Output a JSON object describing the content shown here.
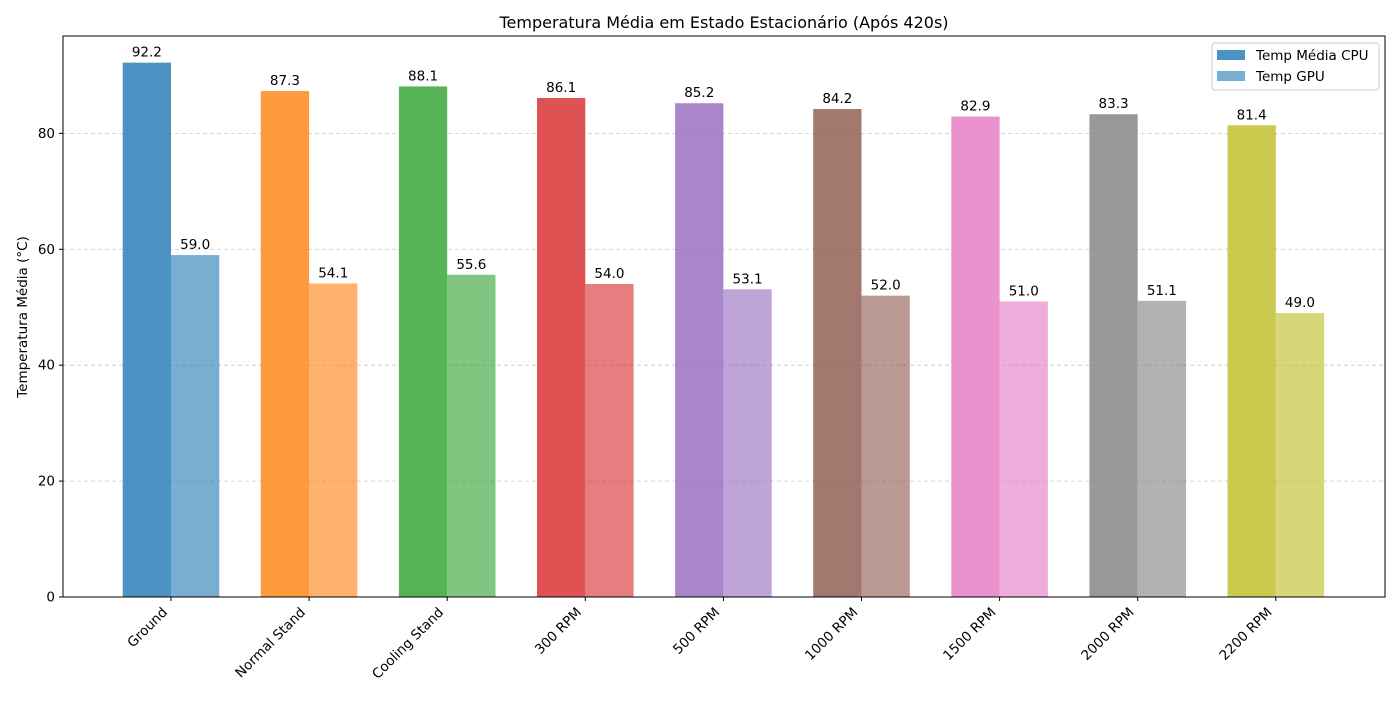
{
  "chart_data": {
    "type": "bar",
    "title": "Temperatura Média em Estado Estacionário (Após 420s)",
    "xlabel": "",
    "ylabel": "Temperatura Média (°C)",
    "ylim": [
      0,
      96.8
    ],
    "yticks": [
      0,
      20,
      40,
      60,
      80
    ],
    "grid": "y-dashed",
    "legend_position": "top-right",
    "categories": [
      "Ground",
      "Normal Stand",
      "Cooling Stand",
      "300 RPM",
      "500 RPM",
      "1000 RPM",
      "1500 RPM",
      "2000 RPM",
      "2200 RPM"
    ],
    "category_colors": [
      "#1f77b4",
      "#ff7f0e",
      "#2ca02c",
      "#d62728",
      "#9467bd",
      "#8c564b",
      "#e377c2",
      "#7f7f7f",
      "#bcbd22"
    ],
    "series": [
      {
        "name": "Temp Média CPU",
        "opacity": 0.8,
        "values": [
          92.2,
          87.3,
          88.1,
          86.1,
          85.2,
          84.2,
          82.9,
          83.3,
          81.4
        ]
      },
      {
        "name": "Temp GPU",
        "opacity": 0.6,
        "values": [
          59.0,
          54.1,
          55.6,
          54.0,
          53.1,
          52.0,
          51.0,
          51.1,
          49.0
        ]
      }
    ],
    "legend": [
      {
        "label": "Temp Média CPU",
        "color": "#1f77b4",
        "opacity": 0.8
      },
      {
        "label": "Temp GPU",
        "color": "#1f77b4",
        "opacity": 0.6
      }
    ]
  }
}
